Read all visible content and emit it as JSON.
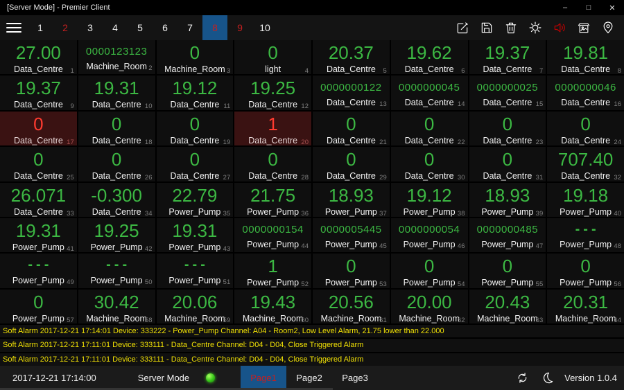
{
  "window": {
    "title": "[Server Mode] - Premier Client",
    "controls": {
      "minimize": "–",
      "maximize": "□",
      "close": "✕"
    }
  },
  "toolbar": {
    "tabs": [
      {
        "label": "1",
        "state": "normal"
      },
      {
        "label": "2",
        "state": "alert"
      },
      {
        "label": "3",
        "state": "normal"
      },
      {
        "label": "4",
        "state": "normal"
      },
      {
        "label": "5",
        "state": "normal"
      },
      {
        "label": "6",
        "state": "normal"
      },
      {
        "label": "7",
        "state": "normal"
      },
      {
        "label": "8",
        "state": "selected alert"
      },
      {
        "label": "9",
        "state": "alert"
      },
      {
        "label": "10",
        "state": "normal"
      }
    ],
    "icons": [
      {
        "name": "edit-icon"
      },
      {
        "name": "save-icon"
      },
      {
        "name": "delete-icon"
      },
      {
        "name": "settings-icon"
      },
      {
        "name": "sound-icon",
        "color": "#C00000"
      },
      {
        "name": "snapshot-icon"
      },
      {
        "name": "location-icon"
      }
    ]
  },
  "grid": {
    "cells": [
      {
        "value": "27.00",
        "label": "Data_Centre",
        "index": 1,
        "alarm": false
      },
      {
        "value": "0000123123",
        "label": "Machine_Room",
        "index": 2,
        "alarm": false
      },
      {
        "value": "0",
        "label": "Machine_Room",
        "index": 3,
        "alarm": false
      },
      {
        "value": "0",
        "label": "light",
        "index": 4,
        "alarm": false
      },
      {
        "value": "20.37",
        "label": "Data_Centre",
        "index": 5,
        "alarm": false
      },
      {
        "value": "19.62",
        "label": "Data_Centre",
        "index": 6,
        "alarm": false
      },
      {
        "value": "19.37",
        "label": "Data_Centre",
        "index": 7,
        "alarm": false
      },
      {
        "value": "19.81",
        "label": "Data_Centre",
        "index": 8,
        "alarm": false
      },
      {
        "value": "19.37",
        "label": "Data_Centre",
        "index": 9,
        "alarm": false
      },
      {
        "value": "19.31",
        "label": "Data_Centre",
        "index": 10,
        "alarm": false
      },
      {
        "value": "19.12",
        "label": "Data_Centre",
        "index": 11,
        "alarm": false
      },
      {
        "value": "19.25",
        "label": "Data_Centre",
        "index": 12,
        "alarm": false
      },
      {
        "value": "0000000122",
        "label": "Data_Centre",
        "index": 13,
        "alarm": false
      },
      {
        "value": "0000000045",
        "label": "Data_Centre",
        "index": 14,
        "alarm": false
      },
      {
        "value": "0000000025",
        "label": "Data_Centre",
        "index": 15,
        "alarm": false
      },
      {
        "value": "0000000046",
        "label": "Data_Centre",
        "index": 16,
        "alarm": false
      },
      {
        "value": "0",
        "label": "Data_Centre",
        "index": 17,
        "alarm": true
      },
      {
        "value": "0",
        "label": "Data_Centre",
        "index": 18,
        "alarm": false
      },
      {
        "value": "0",
        "label": "Data_Centre",
        "index": 19,
        "alarm": false
      },
      {
        "value": "1",
        "label": "Data_Centre",
        "index": 20,
        "alarm": true
      },
      {
        "value": "0",
        "label": "Data_Centre",
        "index": 21,
        "alarm": false
      },
      {
        "value": "0",
        "label": "Data_Centre",
        "index": 22,
        "alarm": false
      },
      {
        "value": "0",
        "label": "Data_Centre",
        "index": 23,
        "alarm": false
      },
      {
        "value": "0",
        "label": "Data_Centre",
        "index": 24,
        "alarm": false
      },
      {
        "value": "0",
        "label": "Data_Centre",
        "index": 25,
        "alarm": false
      },
      {
        "value": "0",
        "label": "Data_Centre",
        "index": 26,
        "alarm": false
      },
      {
        "value": "0",
        "label": "Data_Centre",
        "index": 27,
        "alarm": false
      },
      {
        "value": "0",
        "label": "Data_Centre",
        "index": 28,
        "alarm": false
      },
      {
        "value": "0",
        "label": "Data_Centre",
        "index": 29,
        "alarm": false
      },
      {
        "value": "0",
        "label": "Data_Centre",
        "index": 30,
        "alarm": false
      },
      {
        "value": "0",
        "label": "Data_Centre",
        "index": 31,
        "alarm": false
      },
      {
        "value": "707.40",
        "label": "Data_Centre",
        "index": 32,
        "alarm": false
      },
      {
        "value": "26.071",
        "label": "Data_Centre",
        "index": 33,
        "alarm": false
      },
      {
        "value": "-0.300",
        "label": "Data_Centre",
        "index": 34,
        "alarm": false
      },
      {
        "value": "22.79",
        "label": "Power_Pump",
        "index": 35,
        "alarm": false
      },
      {
        "value": "21.75",
        "label": "Power_Pump",
        "index": 36,
        "alarm": false
      },
      {
        "value": "18.93",
        "label": "Power_Pump",
        "index": 37,
        "alarm": false
      },
      {
        "value": "19.12",
        "label": "Power_Pump",
        "index": 38,
        "alarm": false
      },
      {
        "value": "18.93",
        "label": "Power_Pump",
        "index": 39,
        "alarm": false
      },
      {
        "value": "19.18",
        "label": "Power_Pump",
        "index": 40,
        "alarm": false
      },
      {
        "value": "19.31",
        "label": "Power_Pump",
        "index": 41,
        "alarm": false
      },
      {
        "value": "19.25",
        "label": "Power_Pump",
        "index": 42,
        "alarm": false
      },
      {
        "value": "19.31",
        "label": "Power_Pump",
        "index": 43,
        "alarm": false
      },
      {
        "value": "0000000154",
        "label": "Power_Pump",
        "index": 44,
        "alarm": false
      },
      {
        "value": "0000005445",
        "label": "Power_Pump",
        "index": 45,
        "alarm": false
      },
      {
        "value": "0000000054",
        "label": "Power_Pump",
        "index": 46,
        "alarm": false
      },
      {
        "value": "0000000485",
        "label": "Power_Pump",
        "index": 47,
        "alarm": false
      },
      {
        "value": "---",
        "label": "Power_Pump",
        "index": 48,
        "alarm": false
      },
      {
        "value": "---",
        "label": "Power_Pump",
        "index": 49,
        "alarm": false
      },
      {
        "value": "---",
        "label": "Power_Pump",
        "index": 50,
        "alarm": false
      },
      {
        "value": "---",
        "label": "Power_Pump",
        "index": 51,
        "alarm": false
      },
      {
        "value": "1",
        "label": "Power_Pump",
        "index": 52,
        "alarm": false
      },
      {
        "value": "0",
        "label": "Power_Pump",
        "index": 53,
        "alarm": false
      },
      {
        "value": "0",
        "label": "Power_Pump",
        "index": 54,
        "alarm": false
      },
      {
        "value": "0",
        "label": "Power_Pump",
        "index": 55,
        "alarm": false
      },
      {
        "value": "0",
        "label": "Power_Pump",
        "index": 56,
        "alarm": false
      },
      {
        "value": "0",
        "label": "Power_Pump",
        "index": 57,
        "alarm": false
      },
      {
        "value": "30.42",
        "label": "Machine_Room",
        "index": 58,
        "alarm": false
      },
      {
        "value": "20.06",
        "label": "Machine_Room",
        "index": 59,
        "alarm": false
      },
      {
        "value": "19.43",
        "label": "Machine_Room",
        "index": 60,
        "alarm": false
      },
      {
        "value": "20.56",
        "label": "Machine_Room",
        "index": 61,
        "alarm": false
      },
      {
        "value": "20.00",
        "label": "Machine_Room",
        "index": 62,
        "alarm": false
      },
      {
        "value": "20.43",
        "label": "Machine_Room",
        "index": 63,
        "alarm": false
      },
      {
        "value": "20.31",
        "label": "Machine_Room",
        "index": 64,
        "alarm": false
      }
    ]
  },
  "alarms": [
    "Soft Alarm 2017-12-21 17:14:01 Device: 333222 - Power_Pump Channel: A04 - Room2, Low Level Alarm, 21.75 lower than 22.000",
    "Soft Alarm 2017-12-21 17:11:01 Device: 333111 - Data_Centre Channel: D04 - D04, Close Triggered Alarm",
    "Soft Alarm 2017-12-21 17:11:01 Device: 333111 - Data_Centre Channel: D04 - D04, Close Triggered Alarm"
  ],
  "statusbar": {
    "datetime": "2017-12-21 17:14:00",
    "mode_label": "Server Mode",
    "led_status": "green",
    "pages": [
      {
        "label": "Page1",
        "selected": true
      },
      {
        "label": "Page2",
        "selected": false
      },
      {
        "label": "Page3",
        "selected": false
      }
    ],
    "version": "Version 1.0.4"
  },
  "colors": {
    "background": "#000000",
    "cell_background": "#0F0F0F",
    "value_green": "#3CB843",
    "alarm_cell_background": "#3A1212",
    "alarm_value_red": "#FF3B30",
    "tab_alert_red": "#C42020",
    "selected_blue": "#17548A",
    "alarm_text_yellow": "#F0E005",
    "led_green": "#35C518",
    "statusbar_background": "#1B1B1B"
  }
}
